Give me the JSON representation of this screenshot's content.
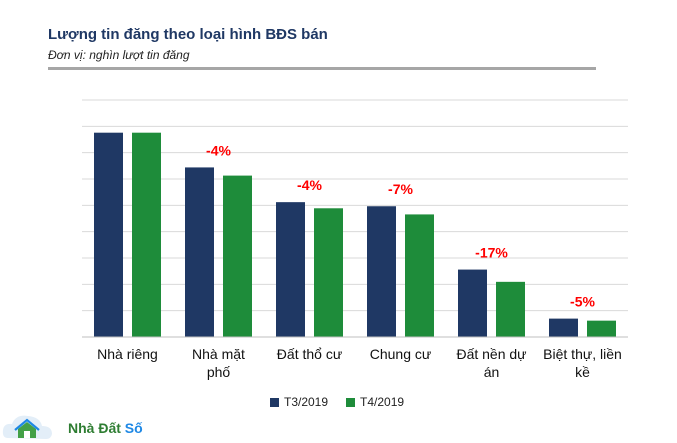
{
  "chart_data": {
    "type": "bar",
    "title": "Lượng tin đăng theo loại hình BĐS bán",
    "subtitle": "Đơn vị: nghìn lượt tin đăng",
    "categories": [
      [
        "Nhà riêng"
      ],
      [
        "Nhà mặt",
        "phố"
      ],
      [
        "Đất thổ cư"
      ],
      [
        "Chung cư"
      ],
      [
        "Đất nền dự",
        "án"
      ],
      [
        "Biệt thự, liền",
        "kề"
      ]
    ],
    "series": [
      {
        "name": "T3/2019",
        "color": "#1f3864",
        "values": [
          100,
          83,
          66,
          64,
          33,
          9
        ]
      },
      {
        "name": "T4/2019",
        "color": "#1e8c3a",
        "values": [
          100,
          79,
          63,
          60,
          27,
          8
        ]
      }
    ],
    "annotations": [
      "",
      "-4%",
      "-4%",
      "-7%",
      "-17%",
      "-5%"
    ],
    "annotation_color": "#ff0000",
    "ylim": [
      0,
      116
    ],
    "gridlines": 9
  },
  "legend": {
    "t3": "T3/2019",
    "t4": "T4/2019"
  },
  "logo": {
    "name_part": "Nhà Đất ",
    "name_so": "Số"
  }
}
